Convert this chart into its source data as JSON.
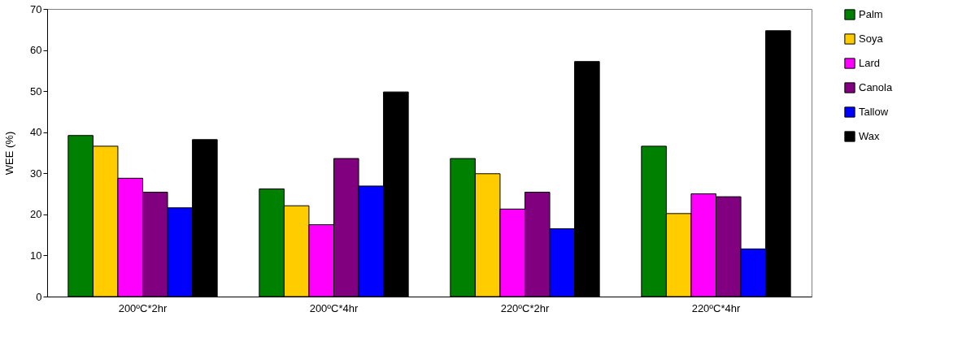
{
  "chart_data": {
    "type": "bar",
    "ylabel": "WEE (%)",
    "categories": [
      "200ºC*2hr",
      "200ºC*4hr",
      "220ºC*2hr",
      "220ºC*4hr"
    ],
    "series": [
      {
        "name": "Palm",
        "color": "#008000",
        "values": [
          39.2,
          26.2,
          33.6,
          36.6
        ]
      },
      {
        "name": "Soya",
        "color": "#ffcc00",
        "values": [
          36.6,
          22.1,
          29.9,
          20.2
        ]
      },
      {
        "name": "Lard",
        "color": "#ff00ff",
        "values": [
          28.8,
          17.5,
          21.3,
          25.0
        ]
      },
      {
        "name": "Canola",
        "color": "#800080",
        "values": [
          25.4,
          33.6,
          25.4,
          24.3
        ]
      },
      {
        "name": "Tallow",
        "color": "#0000ff",
        "values": [
          21.6,
          26.9,
          16.5,
          11.6
        ]
      },
      {
        "name": "Wax",
        "color": "#000000",
        "values": [
          38.2,
          49.8,
          57.2,
          64.7
        ]
      }
    ],
    "ylim": [
      0,
      70
    ],
    "yticks": [
      0,
      10,
      20,
      30,
      40,
      50,
      60,
      70
    ],
    "legend": "right"
  }
}
